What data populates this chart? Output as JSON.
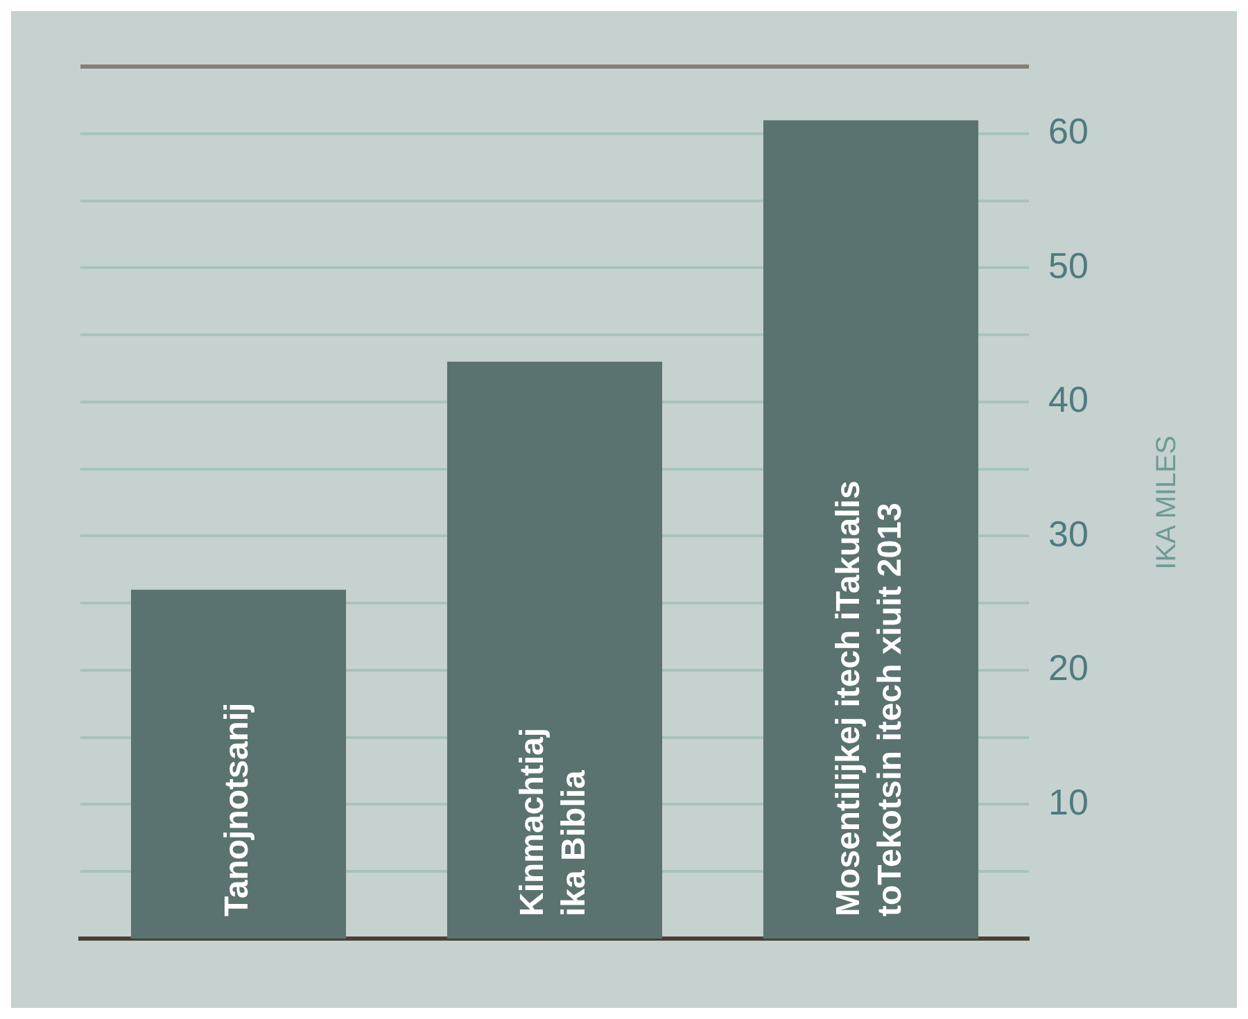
{
  "chart_data": {
    "type": "bar",
    "categories": [
      "Tanojnotsanij",
      "Kinmachtiaj ika Biblia",
      "Mosentilijkej itech iTakualis toTekotsin itech xiuit 2013"
    ],
    "values": [
      26,
      43,
      61
    ],
    "color": "#5a7270",
    "ylabel": "IKA MILES",
    "ylim": [
      0,
      65
    ],
    "yticks": [
      {
        "value": 5,
        "label": null
      },
      10,
      {
        "value": 15,
        "label": null
      },
      20,
      {
        "value": 25,
        "label": null
      },
      30,
      {
        "value": 35,
        "label": null
      },
      40,
      {
        "value": 45,
        "label": null
      },
      50,
      {
        "value": 55,
        "label": null
      },
      60,
      {
        "value": 65,
        "label": null
      }
    ],
    "grid": "y",
    "legend": false
  }
}
